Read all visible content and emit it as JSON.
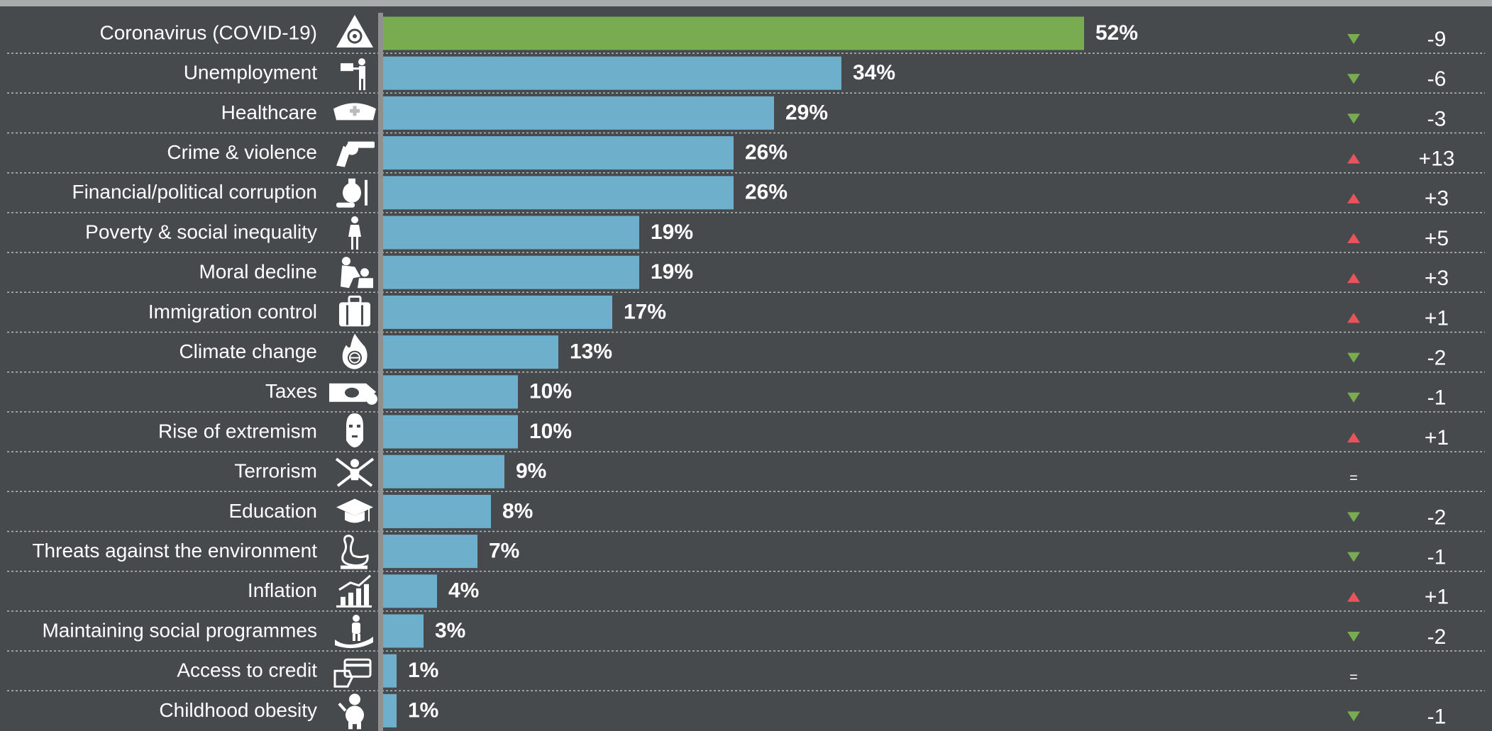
{
  "colors": {
    "background": "#464a4d",
    "highlight_bar": "#79ab51",
    "bar": "#6eb0cb",
    "up_arrow": "#e8545a",
    "down_arrow": "#79ab51",
    "text": "#ffffff",
    "axis": "#8e9190",
    "separator": "#b9bcbc"
  },
  "chart_data": {
    "type": "bar",
    "orientation": "horizontal",
    "value_unit": "%",
    "xlim": [
      0,
      52
    ],
    "highlight_index": 0,
    "categories": [
      "Coronavirus (COVID-19)",
      "Unemployment",
      "Healthcare",
      "Crime & violence",
      "Financial/political corruption",
      "Poverty & social inequality",
      "Moral decline",
      "Immigration control",
      "Climate change",
      "Taxes",
      "Rise of extremism",
      "Terrorism",
      "Education",
      "Threats against the environment",
      "Inflation",
      "Maintaining social programmes",
      "Access to credit",
      "Childhood obesity"
    ],
    "values": [
      52,
      34,
      29,
      26,
      26,
      19,
      19,
      17,
      13,
      10,
      10,
      9,
      8,
      7,
      4,
      3,
      1,
      1
    ],
    "value_labels": [
      "52%",
      "34%",
      "29%",
      "26%",
      "26%",
      "19%",
      "19%",
      "17%",
      "13%",
      "10%",
      "10%",
      "9%",
      "8%",
      "7%",
      "4%",
      "3%",
      "1%",
      "1%"
    ],
    "change_directions": [
      "down",
      "down",
      "down",
      "up",
      "up",
      "up",
      "up",
      "up",
      "down",
      "down",
      "up",
      "same",
      "down",
      "down",
      "up",
      "down",
      "same",
      "down"
    ],
    "change_labels": [
      "-9",
      "-6",
      "-3",
      "+13",
      "+3",
      "+5",
      "+3",
      "+1",
      "-2",
      "-1",
      "+1",
      "=",
      "-2",
      "-1",
      "+1",
      "-2",
      "=",
      "-1"
    ],
    "icons": [
      "biohazard-icon",
      "job-seeker-icon",
      "nurse-cap-icon",
      "revolver-icon",
      "money-bag-icon",
      "person-icon",
      "fight-icon",
      "suitcase-icon",
      "burning-globe-icon",
      "tax-hand-icon",
      "balaclava-icon",
      "crossed-rifles-icon",
      "graduation-cap-icon",
      "oil-swan-icon",
      "rising-chart-icon",
      "helping-hand-icon",
      "credit-card-icon",
      "obese-child-icon"
    ]
  }
}
